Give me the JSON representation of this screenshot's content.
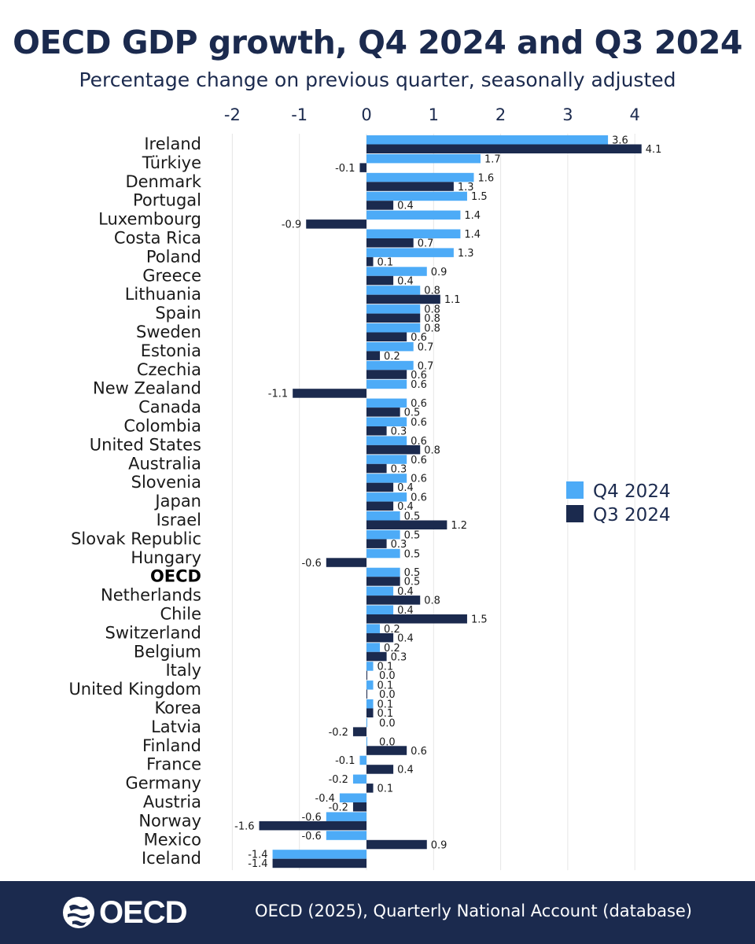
{
  "title": "OECD GDP growth, Q4 2024 and Q3 2024",
  "subtitle": "Percentage change on previous quarter, seasonally adjusted",
  "footer": {
    "logo_text": "OECD",
    "source": "OECD (2025), Quarterly National Account (database)"
  },
  "colors": {
    "q4": "#4dabf7",
    "q3": "#1b2a4e",
    "grid": "#e6e6e6",
    "text": "#1b2a4e"
  },
  "chart_data": {
    "type": "bar",
    "orientation": "horizontal",
    "title": "OECD GDP growth, Q4 2024 and Q3 2024",
    "subtitle": "Percentage change on previous quarter, seasonally adjusted",
    "xlim": [
      -2,
      4
    ],
    "xticks": [
      -2,
      -1,
      0,
      1,
      2,
      3,
      4
    ],
    "xtick_labels": [
      "-2",
      "-1",
      "0",
      "1",
      "2",
      "3",
      "4"
    ],
    "grid": true,
    "legend_position": "right",
    "highlight_category": "OECD",
    "categories": [
      "Ireland",
      "Türkiye",
      "Denmark",
      "Portugal",
      "Luxembourg",
      "Costa Rica",
      "Poland",
      "Greece",
      "Lithuania",
      "Spain",
      "Sweden",
      "Estonia",
      "Czechia",
      "New Zealand",
      "Canada",
      "Colombia",
      "United States",
      "Australia",
      "Slovenia",
      "Japan",
      "Israel",
      "Slovak Republic",
      "Hungary",
      "OECD",
      "Netherlands",
      "Chile",
      "Switzerland",
      "Belgium",
      "Italy",
      "United Kingdom",
      "Korea",
      "Latvia",
      "Finland",
      "France",
      "Germany",
      "Austria",
      "Norway",
      "Mexico",
      "Iceland"
    ],
    "series": [
      {
        "name": "Q4 2024",
        "values": [
          3.6,
          1.7,
          1.6,
          1.5,
          1.4,
          1.4,
          1.3,
          0.9,
          0.8,
          0.8,
          0.8,
          0.7,
          0.7,
          0.6,
          0.6,
          0.6,
          0.6,
          0.6,
          0.6,
          0.6,
          0.5,
          0.5,
          0.5,
          0.5,
          0.4,
          0.4,
          0.2,
          0.2,
          0.1,
          0.1,
          0.1,
          0.0,
          0.0,
          -0.1,
          -0.2,
          -0.4,
          -0.6,
          -0.6,
          -1.4
        ],
        "labels": [
          "3.6",
          "1.7",
          "1.6",
          "1.5",
          "1.4",
          "1.4",
          "1.3",
          "0.9",
          "0.8",
          "0.8",
          "0.8",
          "0.7",
          "0.7",
          "0.6",
          "0.6",
          "0.6",
          "0.6",
          "0.6",
          "0.6",
          "0.6",
          "0.5",
          "0.5",
          "0.5",
          "0.5",
          "0.4",
          "0.4",
          "0.2",
          "0.2",
          "0.1",
          "0.1",
          "0.1",
          "0.0",
          "0.0",
          "-0.1",
          "-0.2",
          "-0.4",
          "-0.6",
          "-0.6",
          "-1.4"
        ]
      },
      {
        "name": "Q3 2024",
        "values": [
          4.1,
          -0.1,
          1.3,
          0.4,
          -0.9,
          0.7,
          0.1,
          0.4,
          1.1,
          0.8,
          0.6,
          0.2,
          0.6,
          -1.1,
          0.5,
          0.3,
          0.8,
          0.3,
          0.4,
          0.4,
          1.2,
          0.3,
          -0.6,
          0.5,
          0.8,
          1.5,
          0.4,
          0.3,
          0.0,
          0.0,
          0.1,
          -0.2,
          0.6,
          0.4,
          0.1,
          -0.2,
          -1.6,
          0.9,
          -1.4
        ],
        "labels": [
          "4.1",
          "-0.1",
          "1.3",
          "0.4",
          "-0.9",
          "0.7",
          "0.1",
          "0.4",
          "1.1",
          "0.8",
          "0.6",
          "0.2",
          "0.6",
          "-1.1",
          "0.5",
          "0.3",
          "0.8",
          "0.3",
          "0.4",
          "0.4",
          "1.2",
          "0.3",
          "-0.6",
          "0.5",
          "0.8",
          "1.5",
          "0.4",
          "0.3",
          "0.0",
          "0.0",
          "0.1",
          "-0.2",
          "0.6",
          "0.4",
          "0.1",
          "-0.2",
          "-1.6",
          "0.9",
          "-1.4"
        ]
      }
    ]
  }
}
